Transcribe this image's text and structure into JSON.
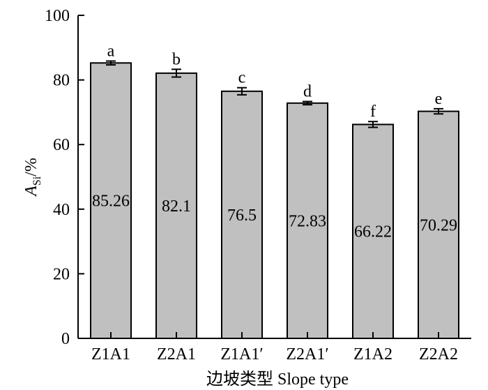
{
  "chart_data": {
    "type": "bar",
    "xlabel": "边坡类型 Slope type",
    "ylabel": {
      "main": "A",
      "sub": "Si",
      "suffix": "/%"
    },
    "ylim": [
      0,
      100
    ],
    "yticks": [
      "0",
      "20",
      "40",
      "60",
      "80",
      "100"
    ],
    "categories": [
      "Z1A1",
      "Z2A1",
      "Z1A1′",
      "Z2A1′",
      "Z1A2",
      "Z2A2"
    ],
    "values": [
      85.26,
      82.1,
      76.5,
      72.83,
      66.22,
      70.29
    ],
    "value_labels": [
      "85.26",
      "82.1",
      "76.5",
      "72.83",
      "66.22",
      "70.29"
    ],
    "errors": [
      0.6,
      1.2,
      1.1,
      0.5,
      0.9,
      0.8
    ],
    "significance": [
      "a",
      "b",
      "c",
      "d",
      "f",
      "e"
    ],
    "bar_color": "#c0c0c0",
    "grid": false,
    "legend": "none"
  }
}
